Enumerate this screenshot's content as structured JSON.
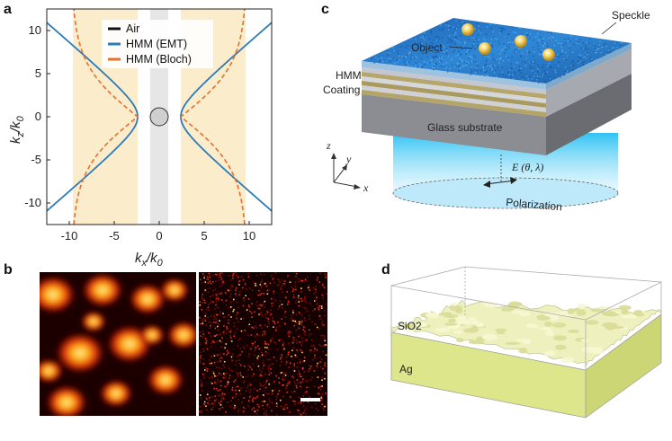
{
  "panels": {
    "a": "a",
    "b": "b",
    "c": "c",
    "d": "d"
  },
  "panel_a": {
    "x_label_main": "k",
    "x_label_sub": "x",
    "x_label_sep": "/k",
    "x_label_sub2": "0",
    "y_label_main": "k",
    "y_label_sub": "z",
    "y_label_sep": "/k",
    "y_label_sub2": "0",
    "colors": {
      "air": "#111111",
      "emt": "#2b7bb9",
      "bloch": "#e8702a",
      "band": "#fbeccb",
      "center": "#e6e6e6",
      "circle_fill": "#cfcfcf"
    }
  },
  "chart_data": {
    "type": "line",
    "xlim": [
      -12.5,
      12.5
    ],
    "ylim": [
      -12.5,
      12.5
    ],
    "x_ticks": [
      -10,
      -5,
      0,
      5,
      10
    ],
    "x_tick_labels": [
      "-10",
      "-5",
      "0",
      "5",
      "10"
    ],
    "y_ticks": [
      -10,
      -5,
      0,
      5,
      10
    ],
    "y_tick_labels": [
      "-10",
      "-5",
      "0",
      "5",
      "10"
    ],
    "legend": [
      "Air",
      "HMM (EMT)",
      "HMM (Bloch)"
    ],
    "legend_position": "top-center",
    "series": [
      {
        "name": "Air",
        "type": "circle",
        "radius": 1
      },
      {
        "name": "HMM (EMT)",
        "type": "hyperbola",
        "a": 2.4,
        "slope": 0.89
      },
      {
        "name": "HMM (Bloch)",
        "type": "hyperbola-bounded",
        "a": 2.4,
        "x_limit": 9.6
      }
    ],
    "shaded_bands": [
      [
        -9.6,
        -2.4
      ],
      [
        2.4,
        9.6
      ]
    ],
    "center_band": [
      -1,
      1
    ]
  },
  "panel_c": {
    "speckle_label": "Speckle",
    "object_label": "Object",
    "hmm_label_line1": "HMM",
    "hmm_label_line2": "Coating",
    "substrate_label": "Glass substrate",
    "polarization_label": "Polarization",
    "field_label": "E (θ, λ)",
    "axis_x": "x",
    "axis_y": "y",
    "axis_z": "z"
  },
  "panel_d": {
    "sio2_label": "SiO2",
    "ag_label": "Ag"
  }
}
